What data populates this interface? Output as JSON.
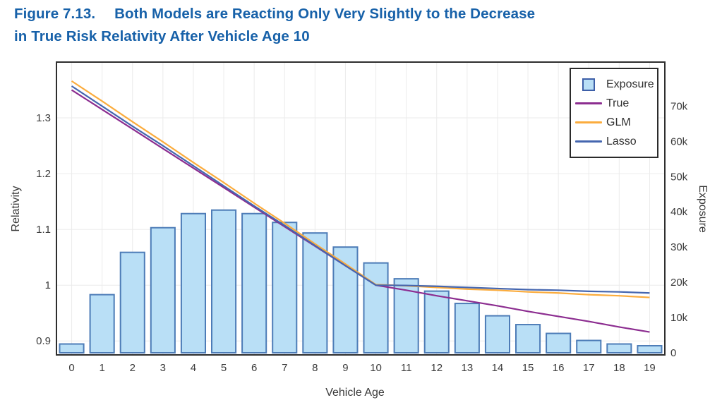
{
  "figure": {
    "label": "Figure 7.13.",
    "title_line1": "Both Models are Reacting Only Very Slightly to the Decrease",
    "title_line2": "in True Risk Relativity After Vehicle Age 10",
    "title_color": "#1761A9"
  },
  "styles": {
    "plot_border_color": "#2e2e2e",
    "axis_text_color": "#3b3b3b",
    "grid_color": "#ebebeb",
    "background": "#ffffff"
  },
  "chart_data": {
    "type": "bar+line",
    "title": "Figure 7.13. Both Models are Reacting Only Very Slightly to the Decrease in True Risk Relativity After Vehicle Age 10",
    "categories": [
      0,
      1,
      2,
      3,
      4,
      5,
      6,
      7,
      8,
      9,
      10,
      11,
      12,
      13,
      14,
      15,
      16,
      17,
      18,
      19
    ],
    "xlabel": "Vehicle Age",
    "grid": {
      "vertical": true,
      "horizontal": true
    },
    "legend_position": "top-right",
    "axes": {
      "left": {
        "label": "Relativity",
        "range": [
          0.875,
          1.4
        ],
        "ticks": [
          {
            "v": 0.9,
            "t": "0.9"
          },
          {
            "v": 1.0,
            "t": "1"
          },
          {
            "v": 1.1,
            "t": "1.1"
          },
          {
            "v": 1.2,
            "t": "1.2"
          },
          {
            "v": 1.3,
            "t": "1.3"
          }
        ]
      },
      "right": {
        "label": "Exposure",
        "unit": "thousands",
        "range": [
          -0.6,
          82.5
        ],
        "ticks": [
          {
            "v": 0,
            "t": "0"
          },
          {
            "v": 10,
            "t": "10k"
          },
          {
            "v": 20,
            "t": "20k"
          },
          {
            "v": 30,
            "t": "30k"
          },
          {
            "v": 40,
            "t": "40k"
          },
          {
            "v": 50,
            "t": "50k"
          },
          {
            "v": 60,
            "t": "60k"
          },
          {
            "v": 70,
            "t": "70k"
          }
        ]
      }
    },
    "bars": {
      "name": "Exposure",
      "axis": "right",
      "fill": "#B9DFF6",
      "stroke": "#4D7CB7",
      "values_thousands": [
        2.5,
        16.5,
        28.5,
        35.5,
        39.5,
        40.5,
        39.5,
        37,
        34,
        30,
        25.5,
        21,
        17.5,
        14,
        10.5,
        8,
        5.5,
        3.5,
        2.5,
        2
      ]
    },
    "series": [
      {
        "name": "True",
        "axis": "left",
        "color": "#8C2D90",
        "values": [
          1.35,
          1.315,
          1.28,
          1.245,
          1.21,
          1.175,
          1.14,
          1.105,
          1.07,
          1.035,
          1.0,
          0.991,
          0.981,
          0.972,
          0.963,
          0.953,
          0.944,
          0.935,
          0.925,
          0.916
        ]
      },
      {
        "name": "GLM",
        "axis": "left",
        "color": "#FBAC3D",
        "values": [
          1.366,
          1.33,
          1.293,
          1.257,
          1.22,
          1.184,
          1.147,
          1.111,
          1.074,
          1.038,
          1.001,
          0.999,
          0.996,
          0.993,
          0.991,
          0.988,
          0.986,
          0.983,
          0.981,
          0.978
        ]
      },
      {
        "name": "Lasso",
        "axis": "left",
        "color": "#4566AF",
        "values": [
          1.357,
          1.321,
          1.285,
          1.25,
          1.214,
          1.178,
          1.142,
          1.107,
          1.071,
          1.035,
          1.0,
          0.9995,
          0.998,
          0.996,
          0.994,
          0.992,
          0.991,
          0.989,
          0.988,
          0.986
        ]
      }
    ],
    "legend": {
      "items": [
        {
          "label": "Exposure",
          "swatch": "square",
          "fill": "#B9DFF6",
          "stroke": "#3D5FA8"
        },
        {
          "label": "True",
          "swatch": "line",
          "color": "#8C2D90"
        },
        {
          "label": "GLM",
          "swatch": "line",
          "color": "#FBAC3D"
        },
        {
          "label": "Lasso",
          "swatch": "line",
          "color": "#4566AF"
        }
      ]
    }
  }
}
